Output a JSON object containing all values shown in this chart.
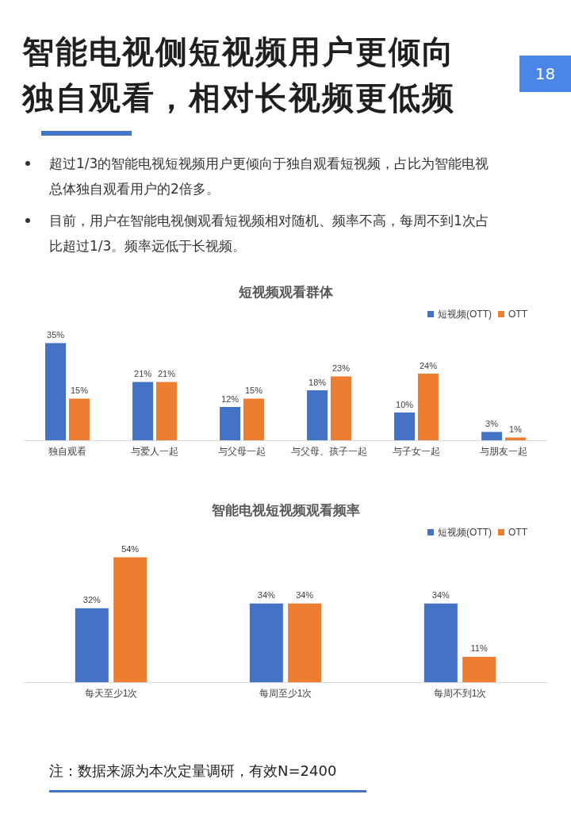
{
  "chart_data": [
    {
      "type": "bar",
      "title": "短视频观看群体",
      "annotations": [
        "18",
        "智能电视侧短视频用户更倾向独自观看，相对长视频更低频",
        "超过1/3的智能电视短视频用户更倾向于独自观看短视频，占比为智能电视总体独自观看用户的2倍多。",
        "目前，用户在智能电视侧观看短视频相对随机、频率不高，每周不到1次占比超过1/3。频率远低于长视频。"
      ],
      "categories": [
        "独自观看",
        "与爱人一起",
        "与父母一起",
        "与父母、孩子一起",
        "与子女一起",
        "与朋友一起"
      ],
      "series": [
        {
          "name": "短视频(OTT)",
          "color": "#4472c4",
          "values": [
            35,
            21,
            12,
            18,
            10,
            3
          ],
          "value_labels": [
            "35%",
            "21%",
            "12%",
            "18%",
            "10%",
            "3%"
          ]
        },
        {
          "name": "OTT",
          "color": "#ed7d31",
          "values": [
            15,
            21,
            15,
            23,
            24,
            1
          ],
          "value_labels": [
            "15%",
            "21%",
            "15%",
            "23%",
            "24%",
            "1%"
          ]
        }
      ],
      "legend": "top right",
      "grid": false
    },
    {
      "type": "bar",
      "title": "智能电视短视频观看频率",
      "annotations": [
        "注：数据来源为本次定量调研，有效N=2400"
      ],
      "categories": [
        "每天至少1次",
        "每周至少1次",
        "每周不到1次"
      ],
      "series": [
        {
          "name": "短视频(OTT)",
          "color": "#4472c4",
          "values": [
            32,
            34,
            34
          ],
          "value_labels": [
            "32%",
            "34%",
            "34%"
          ]
        },
        {
          "name": "OTT",
          "color": "#ed7d31",
          "values": [
            54,
            34,
            11
          ],
          "value_labels": [
            "54%",
            "34%",
            "11%"
          ]
        }
      ],
      "legend": "top right",
      "grid": false
    }
  ]
}
